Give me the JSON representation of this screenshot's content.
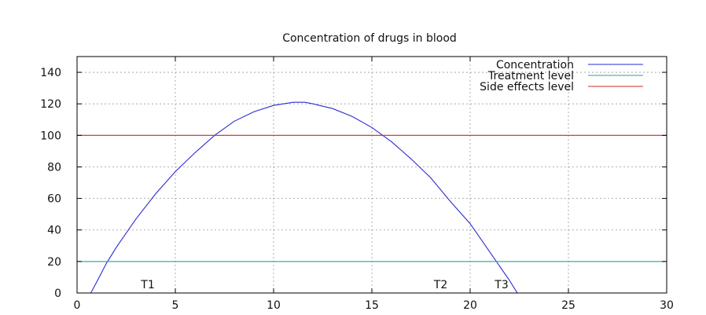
{
  "chart_data": {
    "type": "line",
    "title": "Concentration of drugs in blood",
    "xlim": [
      0,
      30
    ],
    "ylim": [
      0,
      150
    ],
    "xticks": [
      0,
      5,
      10,
      15,
      20,
      25,
      30
    ],
    "yticks": [
      0,
      20,
      40,
      60,
      80,
      100,
      120,
      140
    ],
    "grid": true,
    "legend_position": "top-right",
    "series": [
      {
        "name": "Concentration",
        "color": "#2b2bd6",
        "x": [
          0.7,
          1.0,
          1.5,
          2.0,
          2.5,
          3.0,
          4.0,
          5.0,
          6.0,
          7.0,
          8.0,
          9.0,
          10.0,
          11.0,
          11.6,
          12.0,
          13.0,
          14.0,
          15.0,
          16.0,
          17.0,
          18.0,
          19.0,
          20.0,
          21.0,
          22.0,
          22.4
        ],
        "y": [
          0,
          7,
          19,
          29,
          38,
          47,
          63,
          77,
          89,
          100,
          109,
          115,
          119,
          121,
          121,
          120,
          117,
          112,
          105,
          96,
          85,
          73,
          58,
          44,
          26,
          8,
          0
        ]
      },
      {
        "name": "Treatment level",
        "color": "#2aa198",
        "x": [
          0,
          30
        ],
        "y": [
          20,
          20
        ]
      },
      {
        "name": "Side effects level",
        "color": "#d62728",
        "x": [
          0,
          30
        ],
        "y": [
          100,
          100
        ]
      }
    ],
    "annotations": [
      {
        "text": "T1",
        "x": 3.6,
        "y": 3
      },
      {
        "text": "T2",
        "x": 18.5,
        "y": 3
      },
      {
        "text": "T3",
        "x": 21.6,
        "y": 3
      }
    ]
  }
}
